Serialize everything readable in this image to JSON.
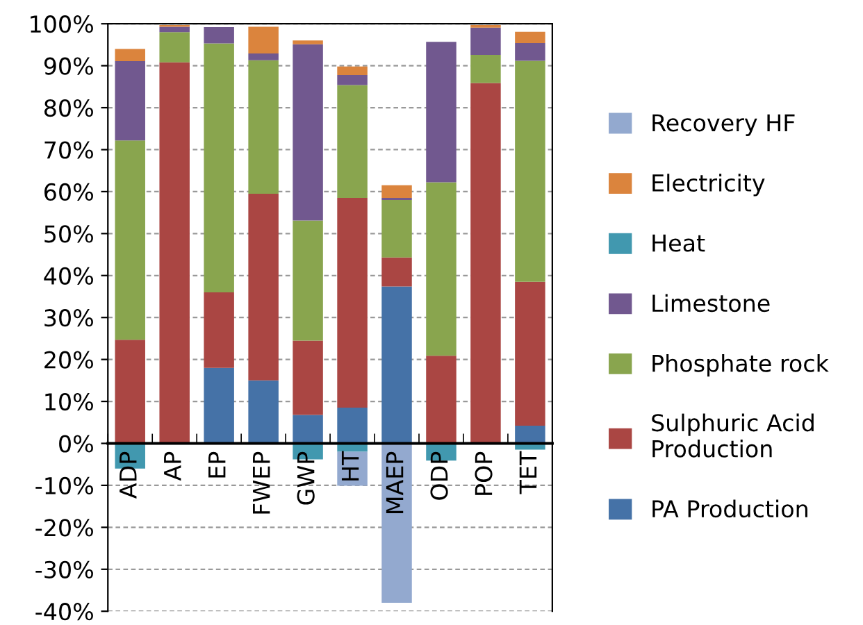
{
  "chart_data": {
    "type": "bar",
    "stacked": true,
    "categories": [
      "ADP",
      "AP",
      "EP",
      "FWEP",
      "GWP",
      "HT",
      "MAEP",
      "ODP",
      "POP",
      "TET"
    ],
    "series": [
      {
        "name": "PA Production",
        "color": "#4572a7",
        "values": [
          0,
          0,
          18,
          15,
          6.8,
          8.5,
          37.4,
          0,
          0,
          4.2
        ]
      },
      {
        "name": "Sulphuric Acid\nProduction",
        "color": "#aa4643",
        "values": [
          24.7,
          90.8,
          18,
          44.5,
          17.7,
          50,
          6.9,
          20.9,
          85.9,
          34.3
        ]
      },
      {
        "name": "Phosphate rock",
        "color": "#89a54e",
        "values": [
          47.5,
          7.2,
          59.3,
          31.8,
          28.6,
          26.9,
          13.7,
          41.3,
          6.7,
          52.7
        ]
      },
      {
        "name": "Limestone",
        "color": "#71588f",
        "values": [
          18.9,
          1.3,
          3.9,
          1.6,
          42,
          2.4,
          0.5,
          33.5,
          6.5,
          4.2
        ]
      },
      {
        "name": "Heat",
        "color": "#4198af",
        "values": [
          -6,
          null,
          null,
          null,
          -3.8,
          -2,
          null,
          -4.1,
          null,
          -1.5
        ]
      },
      {
        "name": "Electricity",
        "color": "#db843d",
        "values": [
          2.9,
          0.4,
          0,
          6.4,
          0.9,
          2,
          3,
          0,
          0.6,
          2.7
        ]
      },
      {
        "name": "Recovery HF",
        "color": "#93a9cf",
        "values": [
          0,
          0,
          0,
          0,
          0,
          -8.1,
          -38,
          0,
          0,
          0
        ]
      }
    ],
    "ylim": [
      -40,
      100
    ],
    "yticks": [
      {
        "value": -40,
        "label": "-40%"
      },
      {
        "value": -30,
        "label": "-30%"
      },
      {
        "value": -20,
        "label": "-20%"
      },
      {
        "value": -10,
        "label": "-10%"
      },
      {
        "value": 0,
        "label": "0%"
      },
      {
        "value": 10,
        "label": "10%"
      },
      {
        "value": 20,
        "label": "20%"
      },
      {
        "value": 30,
        "label": "30%"
      },
      {
        "value": 40,
        "label": "40%"
      },
      {
        "value": 50,
        "label": "50%"
      },
      {
        "value": 60,
        "label": "60%"
      },
      {
        "value": 70,
        "label": "70%"
      },
      {
        "value": 80,
        "label": "80%"
      },
      {
        "value": 90,
        "label": "90%"
      },
      {
        "value": 100,
        "label": "100%"
      }
    ],
    "grid": "y",
    "legend": "right"
  }
}
